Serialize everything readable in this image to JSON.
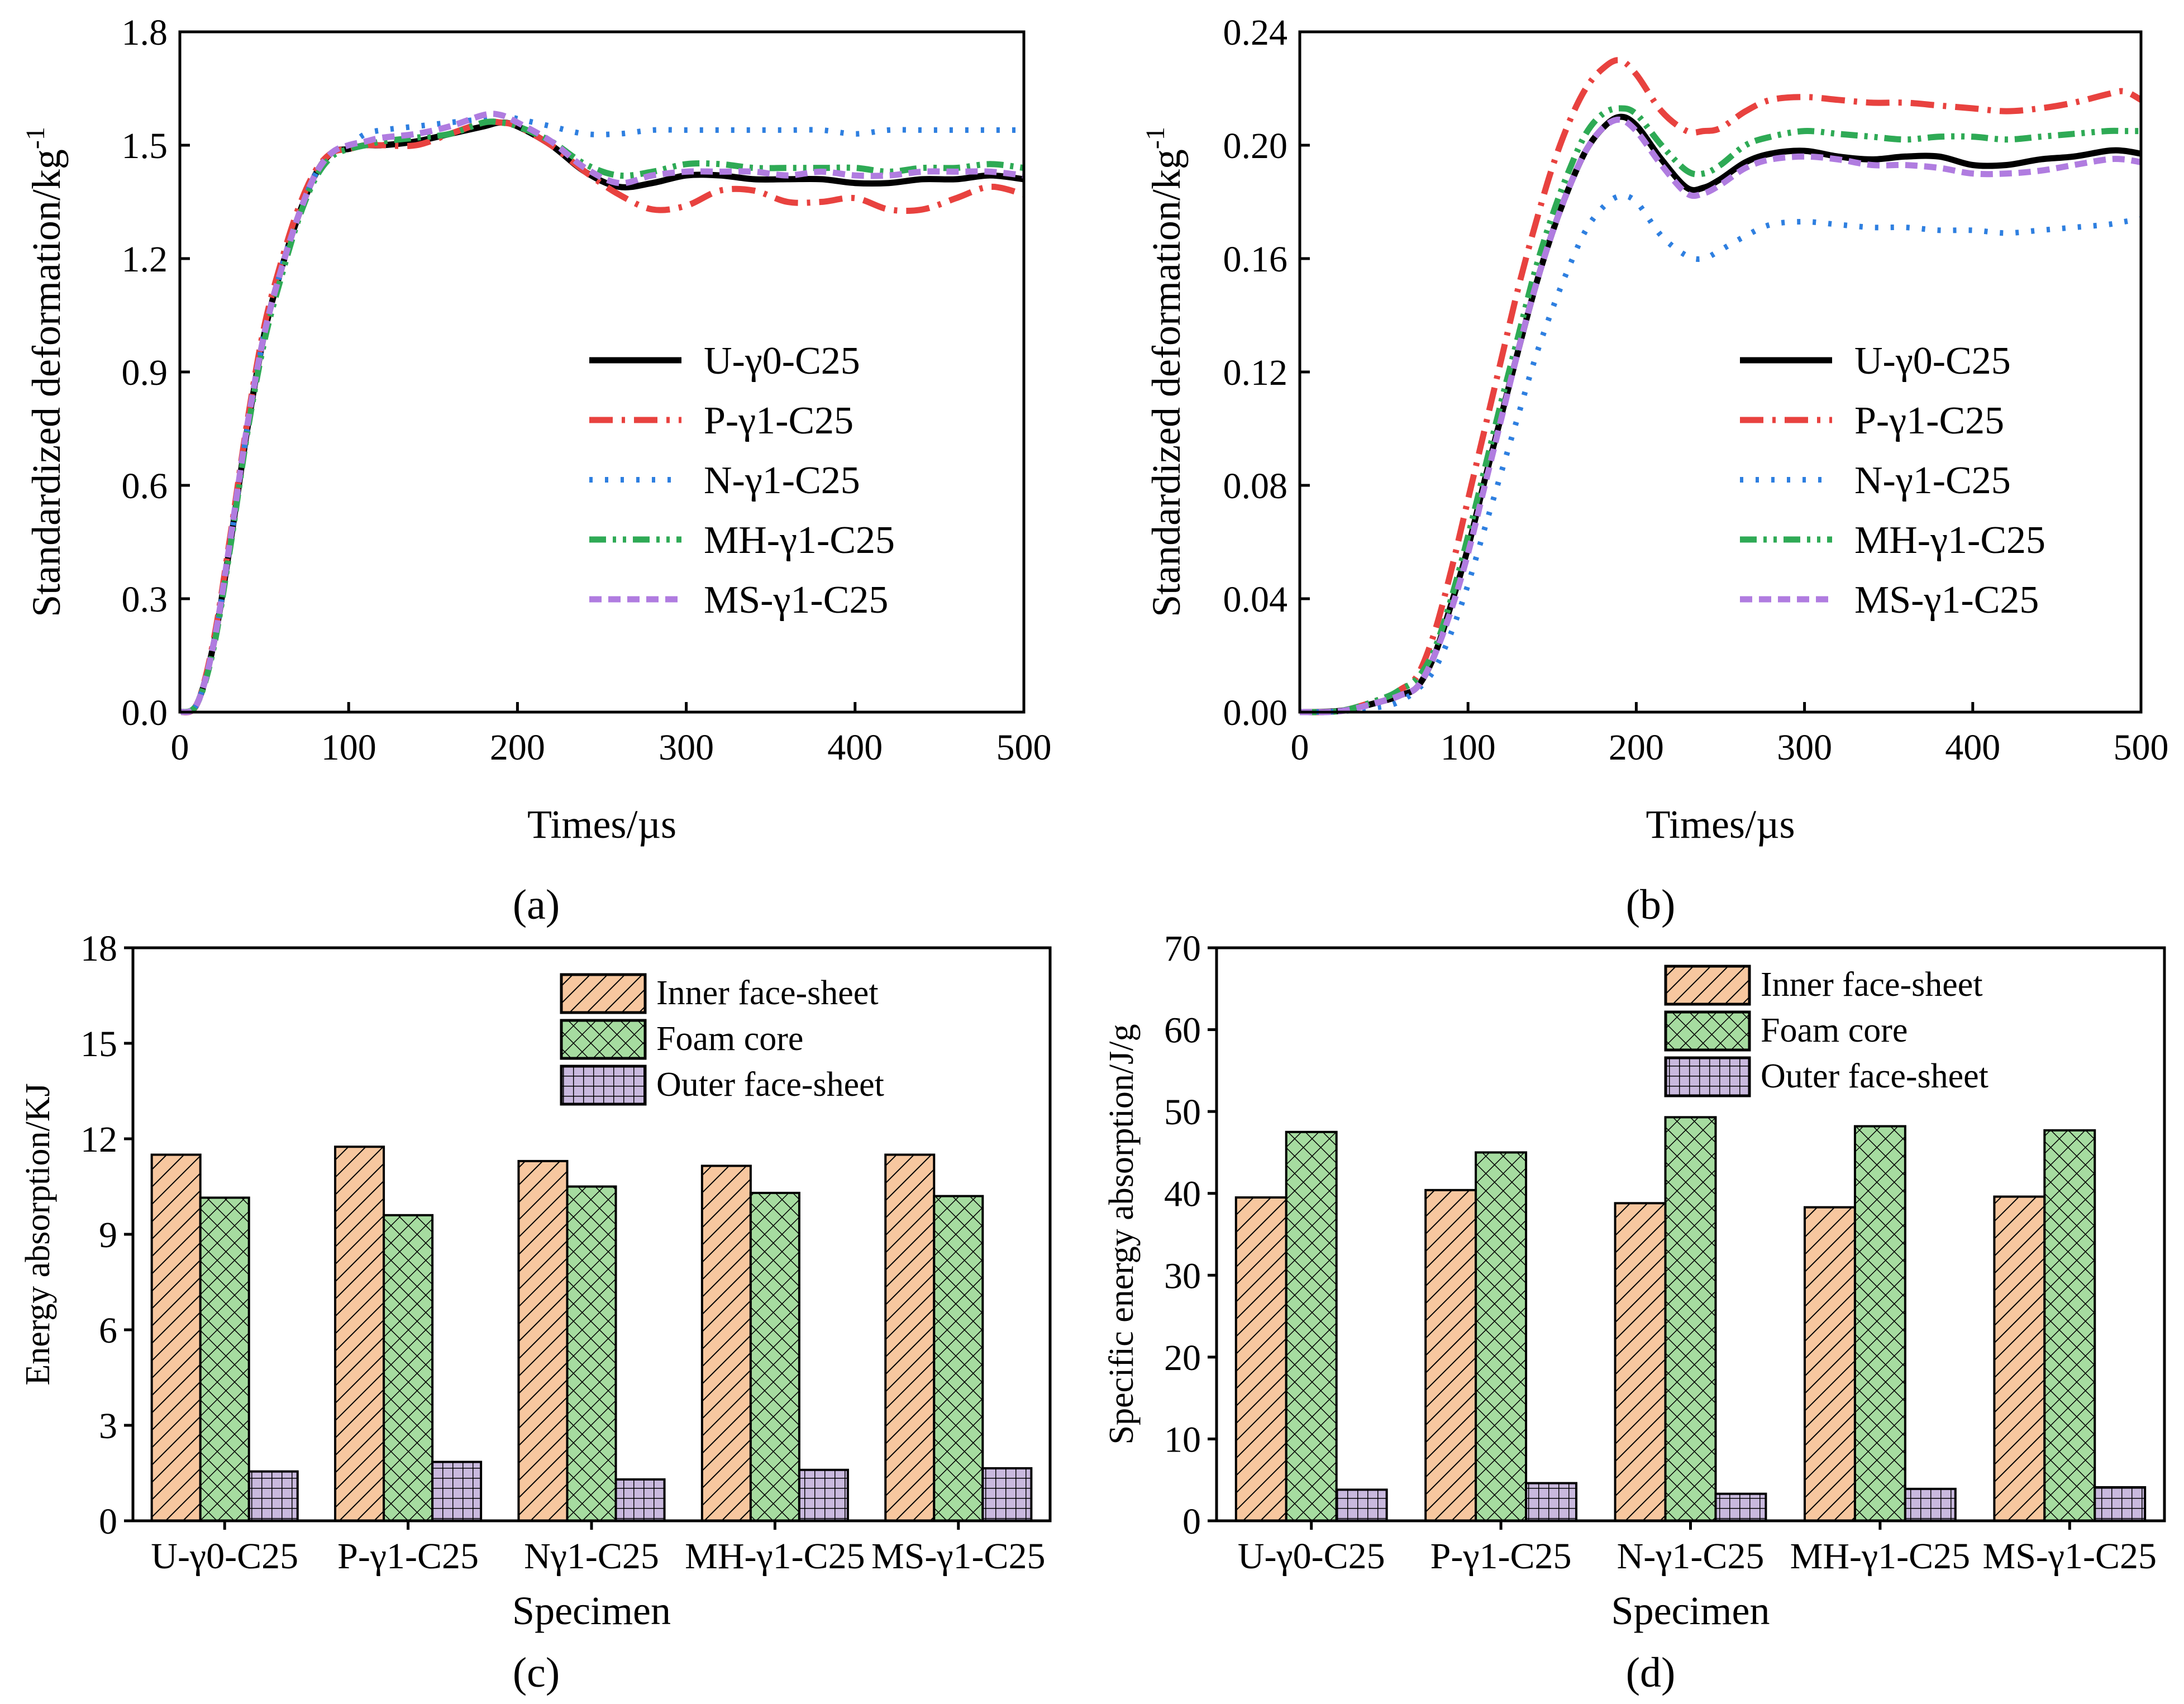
{
  "colors": {
    "U": "#000000",
    "P": "#e8423f",
    "N": "#2e7fe0",
    "MH": "#2eaa55",
    "MS": "#b07ce0",
    "inner": "#f7c79f",
    "foam": "#a6dca0",
    "outer": "#c9b9de"
  },
  "panels": {
    "a": "(a)",
    "b": "(b)",
    "c": "(c)",
    "d": "(d)"
  },
  "chart_data": [
    {
      "id": "a",
      "type": "line",
      "xlabel": "Times/µs",
      "ylabel": "Standardized deformation/kg",
      "ylabel_sup": "-1",
      "xlim": [
        0,
        500
      ],
      "ylim": [
        0,
        1.8
      ],
      "xticks": [
        "0",
        "100",
        "200",
        "300",
        "400",
        "500"
      ],
      "yticks": [
        "0.0",
        "0.3",
        "0.6",
        "0.9",
        "1.2",
        "1.5",
        "1.8"
      ],
      "legend_position": "center-right",
      "series": [
        {
          "key": "U",
          "name": "U-γ0-C25",
          "x": [
            0,
            10,
            20,
            30,
            40,
            50,
            60,
            70,
            80,
            90,
            100,
            110,
            120,
            140,
            160,
            180,
            190,
            200,
            220,
            240,
            260,
            280,
            300,
            320,
            340,
            360,
            380,
            400,
            420,
            440,
            460,
            480,
            500
          ],
          "y": [
            0,
            0.02,
            0.18,
            0.45,
            0.75,
            1.0,
            1.17,
            1.31,
            1.42,
            1.48,
            1.49,
            1.5,
            1.5,
            1.51,
            1.53,
            1.55,
            1.56,
            1.55,
            1.5,
            1.43,
            1.39,
            1.4,
            1.42,
            1.42,
            1.41,
            1.41,
            1.41,
            1.4,
            1.4,
            1.41,
            1.41,
            1.42,
            1.41
          ]
        },
        {
          "key": "P",
          "name": "P-γ1-C25",
          "x": [
            0,
            10,
            20,
            30,
            40,
            50,
            60,
            70,
            80,
            90,
            100,
            110,
            120,
            140,
            160,
            180,
            190,
            200,
            220,
            240,
            260,
            280,
            300,
            320,
            340,
            360,
            380,
            400,
            420,
            440,
            460,
            480,
            500
          ],
          "y": [
            0,
            0.02,
            0.19,
            0.47,
            0.77,
            1.02,
            1.19,
            1.33,
            1.43,
            1.48,
            1.49,
            1.5,
            1.5,
            1.5,
            1.53,
            1.56,
            1.56,
            1.55,
            1.5,
            1.43,
            1.37,
            1.33,
            1.34,
            1.38,
            1.38,
            1.35,
            1.35,
            1.36,
            1.33,
            1.33,
            1.36,
            1.39,
            1.37
          ]
        },
        {
          "key": "N",
          "name": "N-γ1-C25",
          "x": [
            0,
            10,
            20,
            30,
            40,
            50,
            60,
            70,
            80,
            90,
            100,
            110,
            120,
            140,
            160,
            180,
            190,
            200,
            220,
            240,
            260,
            280,
            300,
            320,
            340,
            360,
            380,
            400,
            420,
            440,
            460,
            480,
            500
          ],
          "y": [
            0,
            0.02,
            0.18,
            0.45,
            0.75,
            1.0,
            1.17,
            1.31,
            1.42,
            1.48,
            1.5,
            1.53,
            1.54,
            1.55,
            1.56,
            1.57,
            1.58,
            1.57,
            1.55,
            1.53,
            1.53,
            1.54,
            1.54,
            1.54,
            1.54,
            1.54,
            1.54,
            1.53,
            1.54,
            1.54,
            1.54,
            1.54,
            1.54
          ]
        },
        {
          "key": "MH",
          "name": "MH-γ1-C25",
          "x": [
            0,
            10,
            20,
            30,
            40,
            50,
            60,
            70,
            80,
            90,
            100,
            110,
            120,
            140,
            160,
            180,
            190,
            200,
            220,
            240,
            260,
            280,
            300,
            320,
            340,
            360,
            380,
            400,
            420,
            440,
            460,
            480,
            500
          ],
          "y": [
            0,
            0.02,
            0.17,
            0.44,
            0.74,
            0.98,
            1.15,
            1.3,
            1.41,
            1.47,
            1.49,
            1.5,
            1.51,
            1.52,
            1.53,
            1.56,
            1.56,
            1.55,
            1.51,
            1.45,
            1.42,
            1.43,
            1.45,
            1.45,
            1.44,
            1.44,
            1.44,
            1.44,
            1.43,
            1.44,
            1.44,
            1.45,
            1.44
          ]
        },
        {
          "key": "MS",
          "name": "MS-γ1-C25",
          "x": [
            0,
            10,
            20,
            30,
            40,
            50,
            60,
            70,
            80,
            90,
            100,
            110,
            120,
            140,
            160,
            180,
            190,
            200,
            220,
            240,
            260,
            280,
            300,
            320,
            340,
            360,
            380,
            400,
            420,
            440,
            460,
            480,
            500
          ],
          "y": [
            0,
            0.02,
            0.18,
            0.46,
            0.76,
            1.0,
            1.17,
            1.31,
            1.42,
            1.48,
            1.5,
            1.51,
            1.52,
            1.53,
            1.55,
            1.58,
            1.58,
            1.56,
            1.51,
            1.44,
            1.4,
            1.42,
            1.43,
            1.43,
            1.43,
            1.42,
            1.43,
            1.42,
            1.42,
            1.43,
            1.43,
            1.43,
            1.42
          ]
        }
      ]
    },
    {
      "id": "b",
      "type": "line",
      "xlabel": "Times/µs",
      "ylabel": "Standardized deformation/kg",
      "ylabel_sup": "-1",
      "xlim": [
        0,
        500
      ],
      "ylim": [
        0,
        0.24
      ],
      "xticks": [
        "0",
        "100",
        "200",
        "300",
        "400",
        "500"
      ],
      "yticks": [
        "0.00",
        "0.04",
        "0.08",
        "0.12",
        "0.16",
        "0.20",
        "0.24"
      ],
      "legend_position": "center-right",
      "series": [
        {
          "key": "U",
          "name": "U-γ0-C25",
          "x": [
            0,
            25,
            50,
            60,
            70,
            80,
            90,
            100,
            110,
            120,
            130,
            140,
            150,
            160,
            170,
            180,
            190,
            200,
            215,
            230,
            240,
            250,
            265,
            280,
            300,
            320,
            340,
            360,
            380,
            400,
            420,
            440,
            460,
            480,
            490,
            500
          ],
          "y": [
            0,
            0.0005,
            0.004,
            0.006,
            0.009,
            0.02,
            0.038,
            0.058,
            0.082,
            0.105,
            0.128,
            0.15,
            0.169,
            0.185,
            0.198,
            0.206,
            0.21,
            0.207,
            0.195,
            0.185,
            0.185,
            0.188,
            0.194,
            0.197,
            0.198,
            0.196,
            0.195,
            0.196,
            0.196,
            0.193,
            0.193,
            0.195,
            0.196,
            0.198,
            0.198,
            0.197
          ]
        },
        {
          "key": "P",
          "name": "P-γ1-C25",
          "x": [
            0,
            25,
            50,
            60,
            70,
            80,
            90,
            100,
            110,
            120,
            130,
            140,
            150,
            160,
            170,
            180,
            190,
            200,
            215,
            230,
            240,
            250,
            265,
            280,
            300,
            320,
            340,
            360,
            380,
            400,
            420,
            440,
            460,
            480,
            490,
            500
          ],
          "y": [
            0,
            0.0005,
            0.005,
            0.008,
            0.013,
            0.028,
            0.05,
            0.075,
            0.1,
            0.125,
            0.15,
            0.172,
            0.192,
            0.208,
            0.22,
            0.227,
            0.23,
            0.225,
            0.212,
            0.205,
            0.205,
            0.206,
            0.212,
            0.216,
            0.217,
            0.216,
            0.215,
            0.215,
            0.214,
            0.213,
            0.212,
            0.213,
            0.215,
            0.218,
            0.219,
            0.216
          ]
        },
        {
          "key": "N",
          "name": "N-γ1-C25",
          "x": [
            0,
            25,
            50,
            60,
            70,
            80,
            90,
            100,
            110,
            120,
            130,
            140,
            150,
            160,
            170,
            180,
            190,
            200,
            215,
            230,
            240,
            250,
            265,
            280,
            300,
            320,
            340,
            360,
            380,
            400,
            420,
            440,
            460,
            480,
            490,
            500
          ],
          "y": [
            0,
            0.0003,
            0.002,
            0.004,
            0.008,
            0.015,
            0.028,
            0.045,
            0.065,
            0.085,
            0.105,
            0.125,
            0.142,
            0.157,
            0.17,
            0.178,
            0.182,
            0.18,
            0.168,
            0.161,
            0.16,
            0.163,
            0.168,
            0.172,
            0.173,
            0.172,
            0.171,
            0.171,
            0.17,
            0.17,
            0.169,
            0.17,
            0.171,
            0.172,
            0.173,
            0.174
          ]
        },
        {
          "key": "MH",
          "name": "MH-γ1-C25",
          "x": [
            0,
            25,
            50,
            60,
            70,
            80,
            90,
            100,
            110,
            120,
            130,
            140,
            150,
            160,
            170,
            180,
            190,
            200,
            215,
            230,
            240,
            250,
            265,
            280,
            300,
            320,
            340,
            360,
            380,
            400,
            420,
            440,
            460,
            480,
            490,
            500
          ],
          "y": [
            0,
            0.0005,
            0.005,
            0.008,
            0.012,
            0.022,
            0.04,
            0.062,
            0.086,
            0.11,
            0.133,
            0.156,
            0.175,
            0.191,
            0.204,
            0.211,
            0.213,
            0.211,
            0.2,
            0.191,
            0.19,
            0.193,
            0.2,
            0.203,
            0.205,
            0.204,
            0.203,
            0.202,
            0.203,
            0.203,
            0.202,
            0.203,
            0.204,
            0.205,
            0.205,
            0.205
          ]
        },
        {
          "key": "MS",
          "name": "MS-γ1-C25",
          "x": [
            0,
            25,
            50,
            60,
            70,
            80,
            90,
            100,
            110,
            120,
            130,
            140,
            150,
            160,
            170,
            180,
            190,
            200,
            215,
            230,
            240,
            250,
            265,
            280,
            300,
            320,
            340,
            360,
            380,
            400,
            420,
            440,
            460,
            480,
            490,
            500
          ],
          "y": [
            0,
            0.0004,
            0.004,
            0.006,
            0.009,
            0.02,
            0.036,
            0.056,
            0.08,
            0.104,
            0.128,
            0.15,
            0.169,
            0.185,
            0.198,
            0.206,
            0.209,
            0.205,
            0.193,
            0.183,
            0.183,
            0.186,
            0.192,
            0.195,
            0.196,
            0.195,
            0.193,
            0.193,
            0.192,
            0.19,
            0.19,
            0.191,
            0.193,
            0.195,
            0.195,
            0.194
          ]
        }
      ]
    },
    {
      "id": "c",
      "type": "bar",
      "xlabel": "Specimen",
      "ylabel": "Energy absorption/KJ",
      "ylim": [
        0,
        18
      ],
      "yticks": [
        "0",
        "3",
        "6",
        "9",
        "12",
        "15",
        "18"
      ],
      "categories": [
        "U-γ0-C25",
        "P-γ1-C25",
        "Nγ1-C25",
        "MH-γ1-C25",
        "MS-γ1-C25"
      ],
      "legend_position": "top-right",
      "series": [
        {
          "key": "inner",
          "name": "Inner face-sheet",
          "values": [
            11.5,
            11.75,
            11.3,
            11.15,
            11.5
          ]
        },
        {
          "key": "foam",
          "name": "Foam core",
          "values": [
            10.15,
            9.6,
            10.5,
            10.3,
            10.2
          ]
        },
        {
          "key": "outer",
          "name": "Outer face-sheet",
          "values": [
            1.55,
            1.85,
            1.3,
            1.6,
            1.65
          ]
        }
      ]
    },
    {
      "id": "d",
      "type": "bar",
      "xlabel": "Specimen",
      "ylabel": "Specific energy absorption/J/g",
      "ylim": [
        0,
        70
      ],
      "yticks": [
        "0",
        "10",
        "20",
        "30",
        "40",
        "50",
        "60",
        "70"
      ],
      "categories": [
        "U-γ0-C25",
        "P-γ1-C25",
        "N-γ1-C25",
        "MH-γ1-C25",
        "MS-γ1-C25"
      ],
      "legend_position": "top-right",
      "series": [
        {
          "key": "inner",
          "name": "Inner face-sheet",
          "values": [
            39.5,
            40.4,
            38.8,
            38.3,
            39.6
          ]
        },
        {
          "key": "foam",
          "name": "Foam core",
          "values": [
            47.5,
            45,
            49.3,
            48.2,
            47.7
          ]
        },
        {
          "key": "outer",
          "name": "Outer face-sheet",
          "values": [
            3.8,
            4.6,
            3.3,
            3.9,
            4.1
          ]
        }
      ]
    }
  ]
}
